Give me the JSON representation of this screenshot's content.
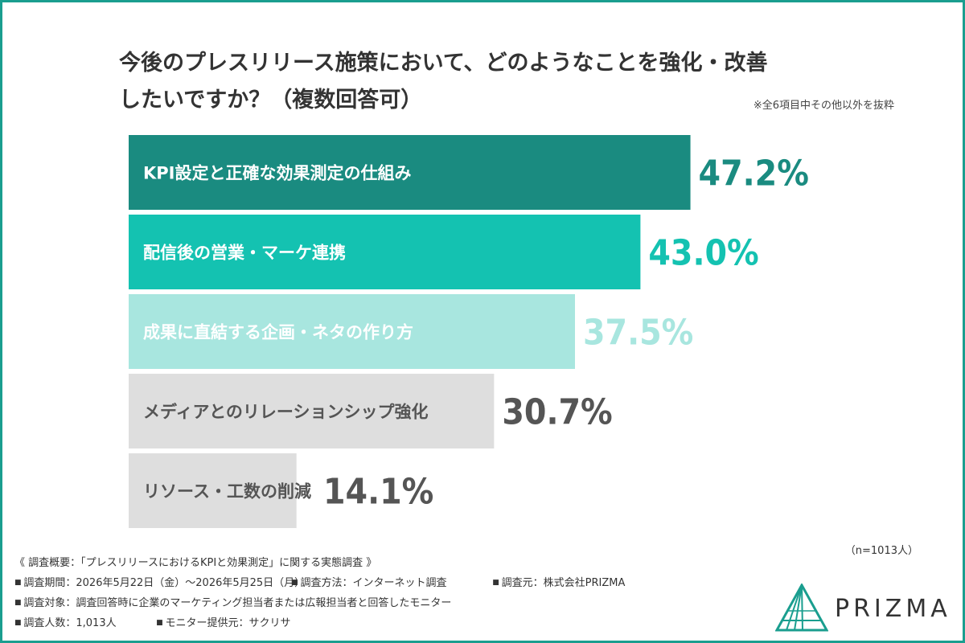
{
  "title_lines": [
    "今後のプレスリリース施策において、どのようなことを強化・改善",
    "したいですか？（複数回答可）"
  ],
  "note": "※全6項目中その他以外を抜粋",
  "chart_data": {
    "type": "bar",
    "orientation": "horizontal",
    "categories": [
      "KPI設定と正確な効果測定の仕組み",
      "配信後の営業・マーケ連携",
      "成果に直結する企画・ネタの作り方",
      "メディアとのリレーションシップ強化",
      "リソース・工数の削減"
    ],
    "values": [
      47.2,
      43.0,
      37.5,
      30.7,
      14.1
    ],
    "value_labels": [
      "47.2%",
      "43.0%",
      "37.5%",
      "30.7%",
      "14.1%"
    ],
    "bar_colors": [
      "#1a8b80",
      "#14c2b1",
      "#a8e6df",
      "#dedede",
      "#dedede"
    ],
    "label_colors": [
      "#ffffff",
      "#ffffff",
      "#ffffff",
      "#555555",
      "#555555"
    ],
    "value_colors": [
      "#1a8b80",
      "#14c2b1",
      "#a8e6df",
      "#555555",
      "#555555"
    ],
    "xlim": [
      0,
      60
    ],
    "grid": false,
    "legend": "none"
  },
  "sample_size": "（n=1013人）",
  "survey": {
    "heading": "《 調査概要：「プレスリリースにおけるKPIと効果測定」に関する実態調査 》",
    "period": "調査期間：2026年5月22日（金）〜2026年5月25日（月）",
    "method": "調査方法：インターネット調査",
    "source": "調査元：株式会社PRIZMA",
    "target": "調査対象：調査回答時に企業のマーケティング担当者または広報担当者と回答したモニター",
    "count": "調査人数：1,013人",
    "provider": "モニター提供元：サクリサ"
  },
  "logo": {
    "text": "PRIZMA",
    "color": "#1a9e8f"
  }
}
